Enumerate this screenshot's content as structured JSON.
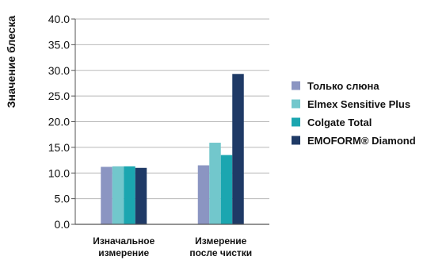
{
  "chart_data": {
    "type": "bar",
    "title": "",
    "xlabel": "",
    "ylabel": "Значение блеска",
    "ylim": [
      0,
      40
    ],
    "yticks": [
      0,
      5,
      10,
      15,
      20,
      25,
      30,
      35,
      40
    ],
    "ytick_labels": [
      "0.0",
      "5.0",
      "10.0",
      "15.0",
      "20.0",
      "25.0",
      "30.0",
      "35.0",
      "40.0"
    ],
    "grid": true,
    "legend_position": "right",
    "categories": [
      [
        "Изначальное",
        "измерение"
      ],
      [
        "Измерение",
        "после чистки"
      ]
    ],
    "series": [
      {
        "name": "Только слюна",
        "color": "#8b95c2",
        "values": [
          11.2,
          11.5
        ]
      },
      {
        "name": "Elmex Sensitive Plus",
        "color": "#72c7cc",
        "values": [
          11.3,
          15.9
        ]
      },
      {
        "name": "Colgate Total",
        "color": "#1ba6b0",
        "values": [
          11.3,
          13.5
        ]
      },
      {
        "name": "EMOFORM® Diamond",
        "color": "#1f3a66",
        "values": [
          11.0,
          29.3
        ]
      }
    ]
  }
}
